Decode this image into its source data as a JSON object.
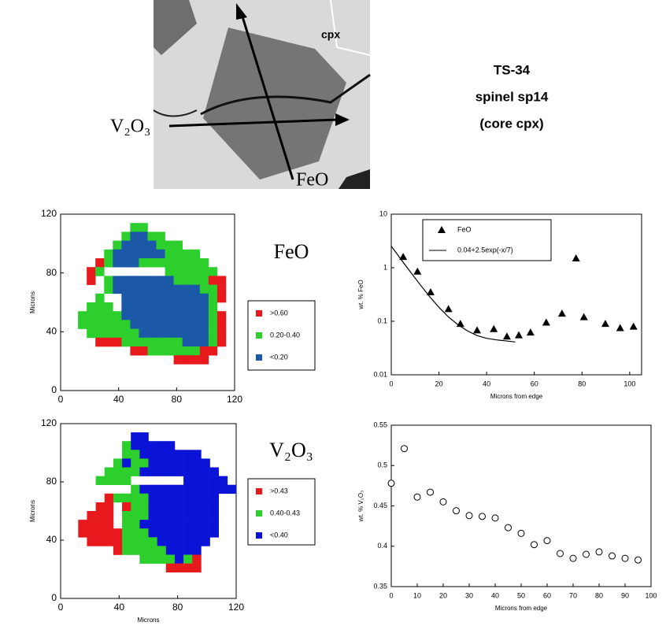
{
  "image_labels": {
    "mineral": "cpx",
    "v_label": "V₂O₃",
    "fe_label": "FeO"
  },
  "title": [
    "TS-34",
    "spinel sp14",
    "(core cpx)"
  ],
  "chart_data": [
    {
      "type": "heatmap",
      "title": "FeO",
      "ylabel": "Microns",
      "xlim": [
        0,
        120
      ],
      "ylim": [
        0,
        120
      ],
      "xticks": [
        0,
        40,
        80,
        120
      ],
      "yticks": [
        0,
        40,
        80,
        120
      ],
      "cell_size": 6,
      "x_start": 12,
      "y_top": 114,
      "legend": [
        {
          "label": ">0.60",
          "color": "#e8191c"
        },
        {
          "label": "0.20-0.40",
          "color": "#2ccf2c"
        },
        {
          "label": "<0.20",
          "color": "#1b58a8"
        }
      ],
      "map": [
        "000000220000000000",
        "000002332200000000",
        "000023333222000000",
        "000233333322220000",
        "001233322222222000",
        "012000000022222200",
        "010233333332222110",
        "000233333333332210",
        "002003333333333210",
        "022203333333333200",
        "222223333333333210",
        "222222333333333210",
        "022222233333333210",
        "001112222222333210",
        "000000112222221100",
        "000000000001111000"
      ]
    },
    {
      "type": "scatter",
      "ylabel": "wt. % FeO",
      "xlabel": "Microns from edge",
      "log_y": true,
      "xlim": [
        0,
        105
      ],
      "ylim": [
        0.01,
        10
      ],
      "xticks": [
        0,
        20,
        40,
        60,
        80,
        100
      ],
      "yticks": [
        0.01,
        0.1,
        1,
        10
      ],
      "series": [
        {
          "name": "FeO",
          "marker": "triangle",
          "color": "#000000",
          "x": [
            5,
            11,
            16.5,
            24,
            29,
            36,
            43,
            48.5,
            53.5,
            58.4,
            65,
            71.6,
            77.5,
            80.8,
            89.8,
            96,
            101.6
          ],
          "values": [
            1.6,
            0.85,
            0.35,
            0.17,
            0.09,
            0.068,
            0.072,
            0.052,
            0.055,
            0.062,
            0.095,
            0.14,
            1.5,
            0.12,
            0.09,
            0.075,
            0.08
          ]
        },
        {
          "name": "0.04+2.5exp(-x/7)",
          "marker": "line",
          "color": "#000000",
          "x": [
            0,
            4,
            8,
            12,
            16,
            20,
            24,
            28,
            32,
            36,
            40,
            44,
            48,
            52
          ],
          "values": [
            2.54,
            1.45,
            0.837,
            0.49,
            0.292,
            0.182,
            0.12,
            0.086,
            0.066,
            0.054,
            0.048,
            0.045,
            0.043,
            0.041
          ]
        }
      ]
    },
    {
      "type": "heatmap",
      "title": "V₂O₃",
      "ylabel": "Microns",
      "xlabel": "Microns",
      "xlim": [
        0,
        120
      ],
      "ylim": [
        0,
        120
      ],
      "xticks": [
        0,
        40,
        80,
        120
      ],
      "yticks": [
        0,
        40,
        80,
        120
      ],
      "cell_size": 6,
      "x_start": 12,
      "y_top": 114,
      "legend": [
        {
          "label": ">0.43",
          "color": "#e8191c"
        },
        {
          "label": "0.40-0.43",
          "color": "#2ccf2c"
        },
        {
          "label": "<0.40",
          "color": "#0b14d6"
        }
      ],
      "map": [
        "000000330000000000",
        "000002333330000000",
        "000002233333330000",
        "000023223333333000",
        "000222233333333300",
        "002222000000333330",
        "000000233333333333",
        "000122223333333300",
        "001101223333333300",
        "011102223333333300",
        "111102233333333300",
        "111112223333333300",
        "011112222333333000",
        "000012222233330000",
        "000000022223210000",
        "000000000011110000"
      ]
    },
    {
      "type": "scatter",
      "ylabel": "wt. % V₂O₃",
      "xlabel": "Microns from edge",
      "xlim": [
        0,
        100
      ],
      "ylim": [
        0.35,
        0.55
      ],
      "xticks": [
        0,
        10,
        20,
        30,
        40,
        50,
        60,
        70,
        80,
        90,
        100
      ],
      "yticks": [
        0.35,
        0.4,
        0.45,
        0.5,
        0.55
      ],
      "series": [
        {
          "name": "V₂O₃",
          "marker": "circle",
          "color": "#000000",
          "x": [
            0,
            5,
            10,
            15,
            20,
            25,
            30,
            35,
            40,
            45,
            50,
            55,
            60,
            65,
            70,
            75,
            80,
            85,
            90,
            95
          ],
          "values": [
            0.478,
            0.521,
            0.461,
            0.467,
            0.455,
            0.444,
            0.438,
            0.437,
            0.435,
            0.423,
            0.416,
            0.402,
            0.407,
            0.391,
            0.385,
            0.39,
            0.393,
            0.388,
            0.385,
            0.383
          ]
        }
      ]
    }
  ]
}
